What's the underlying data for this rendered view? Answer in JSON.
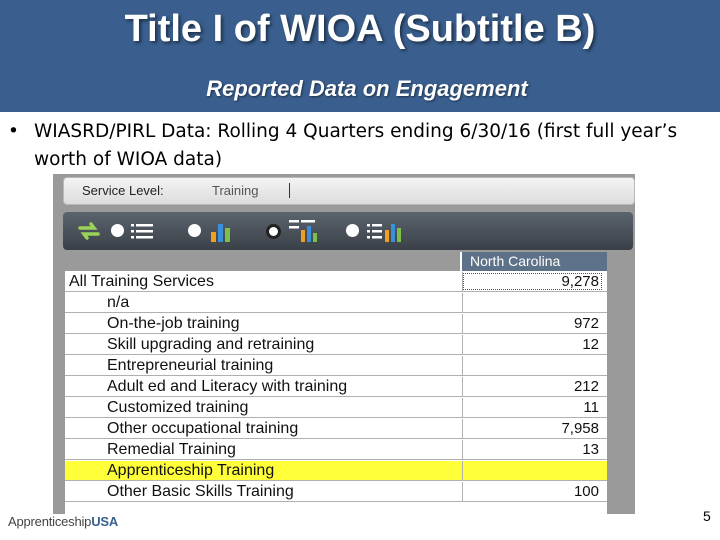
{
  "slide": {
    "title": "Title I of WIOA (Subtitle B)",
    "subtitle": "Reported Data on Engagement",
    "bullet": "WIASRD/PIRL Data: Rolling 4 Quarters ending 6/30/16 (first full year’s worth of WIOA data)",
    "page_number": "5",
    "logo_regular": "Apprenticeship",
    "logo_bold": "USA"
  },
  "colors": {
    "header_band": "#3a5f8f",
    "highlight_row": "#ffff3a",
    "table_header": "#5d7188"
  },
  "screenshot": {
    "service_level_label": "Service Level:",
    "service_level_value": "Training",
    "toolbar_icons": [
      "refresh-icon",
      "radio-icon",
      "list-icon",
      "radio-icon",
      "bar-chart-icon",
      "radio-selected-icon",
      "bar-table-icon",
      "radio-icon",
      "table-chart-icon"
    ],
    "column_header": "North Carolina",
    "rows": [
      {
        "label": "All Training Services",
        "value": "9,278",
        "indent": false,
        "highlight": false
      },
      {
        "label": "n/a",
        "value": "",
        "indent": true,
        "highlight": false
      },
      {
        "label": "On-the-job training",
        "value": "972",
        "indent": true,
        "highlight": false
      },
      {
        "label": "Skill upgrading and retraining",
        "value": "12",
        "indent": true,
        "highlight": false
      },
      {
        "label": "Entrepreneurial training",
        "value": "",
        "indent": true,
        "highlight": false
      },
      {
        "label": "Adult ed and Literacy with training",
        "value": "212",
        "indent": true,
        "highlight": false
      },
      {
        "label": "Customized training",
        "value": "11",
        "indent": true,
        "highlight": false
      },
      {
        "label": "Other occupational training",
        "value": "7,958",
        "indent": true,
        "highlight": false
      },
      {
        "label": "Remedial Training",
        "value": "13",
        "indent": true,
        "highlight": false
      },
      {
        "label": "Apprenticeship Training",
        "value": "",
        "indent": true,
        "highlight": true
      },
      {
        "label": "Other Basic Skills Training",
        "value": "100",
        "indent": true,
        "highlight": false
      }
    ]
  }
}
